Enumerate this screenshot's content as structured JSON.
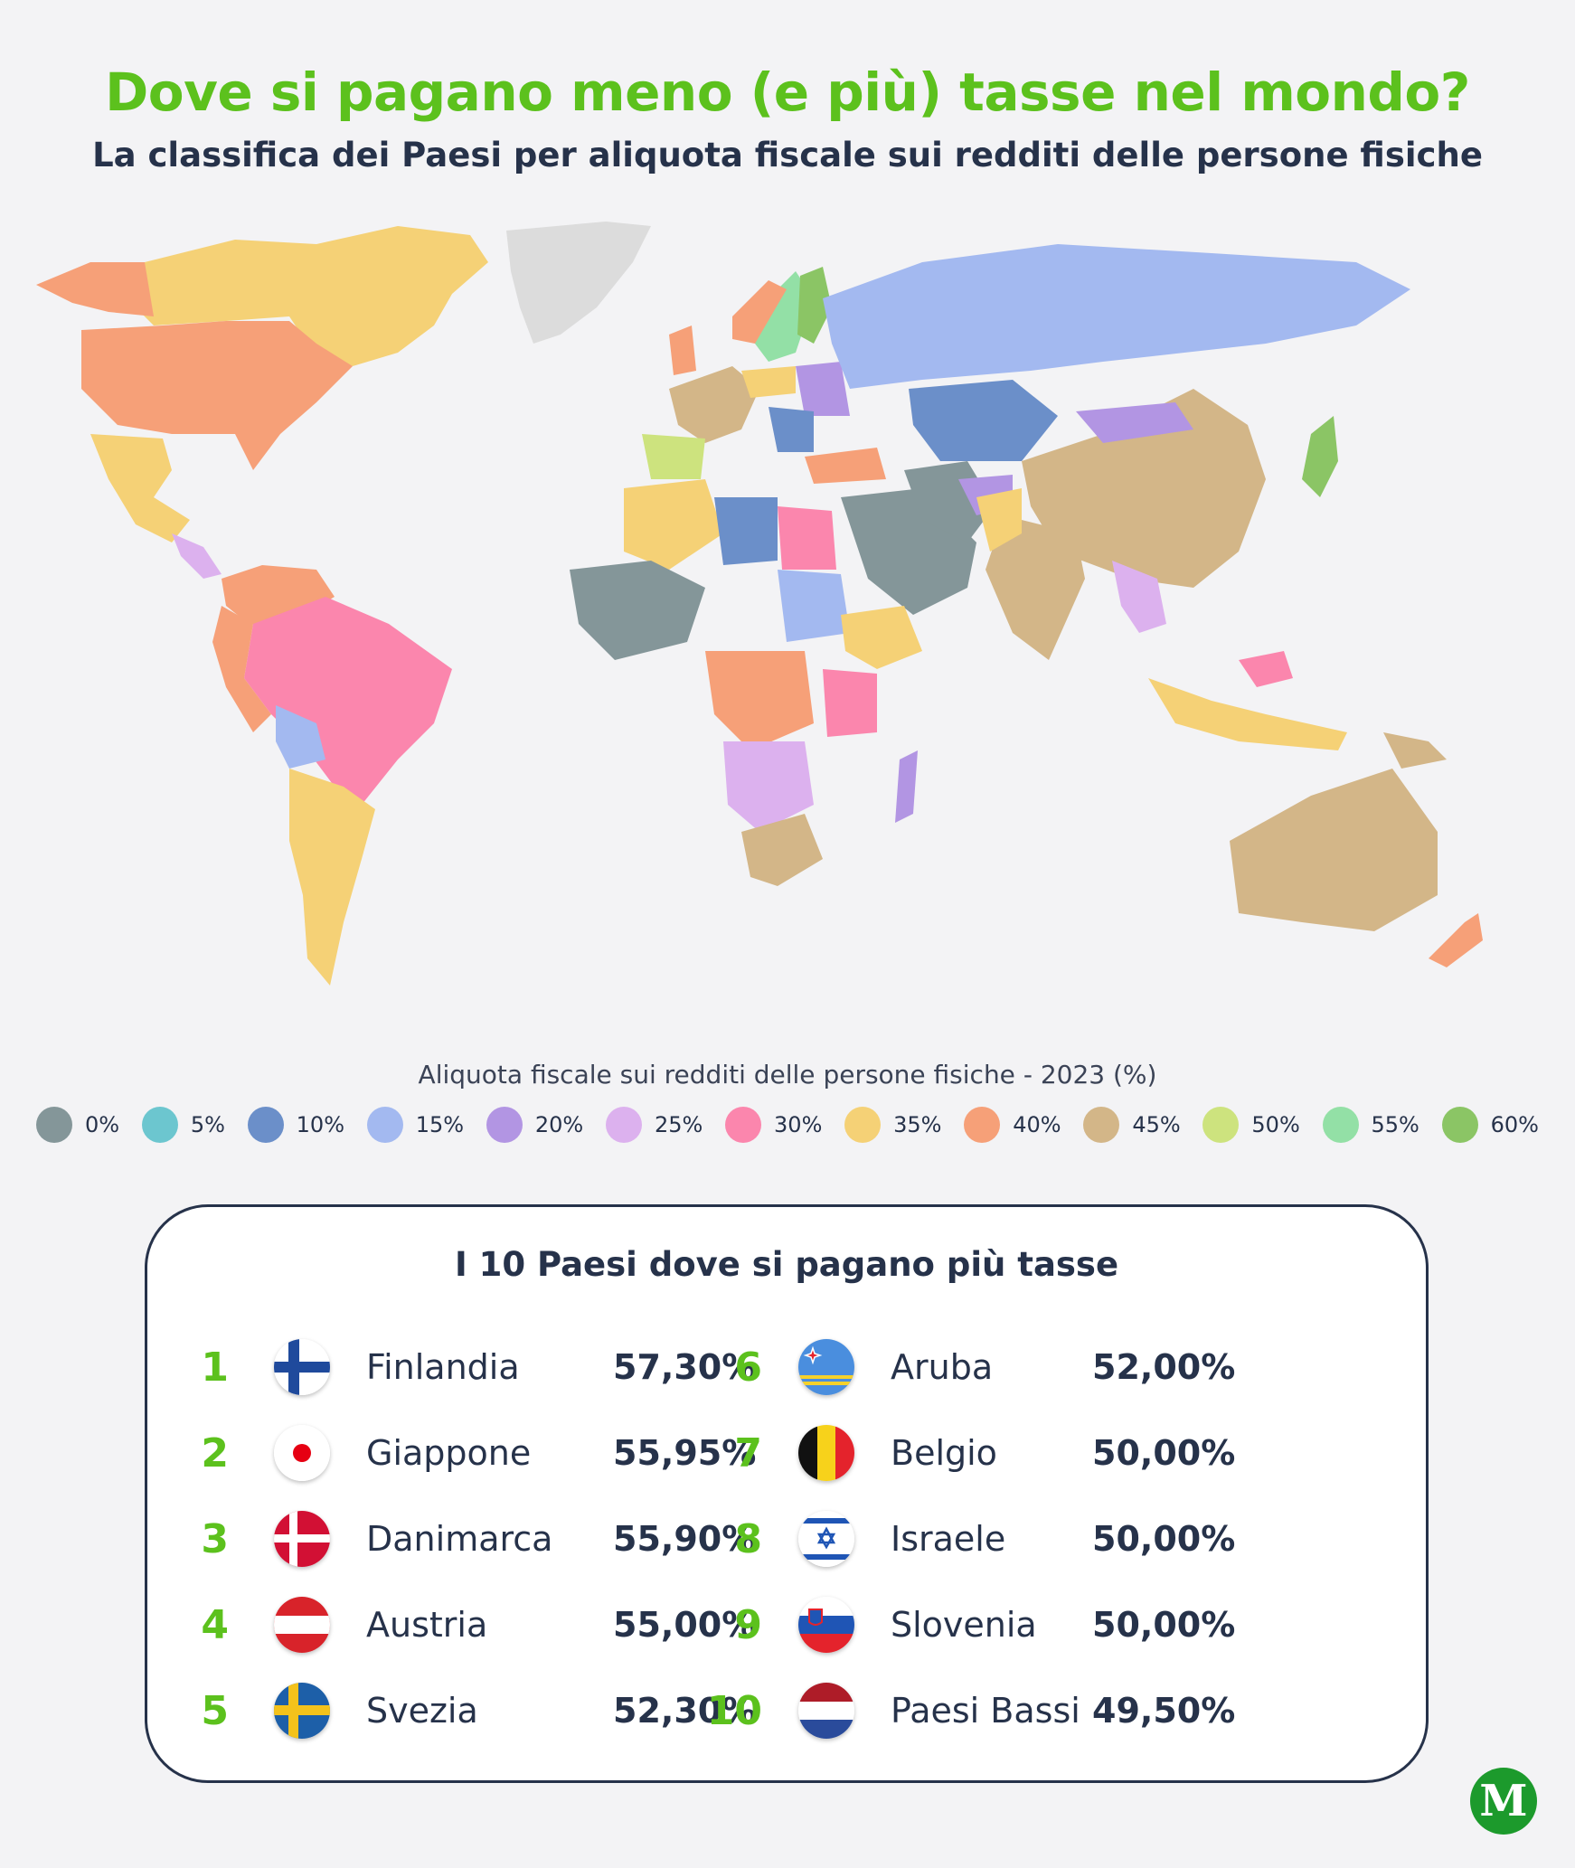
{
  "header": {
    "title": "Dove si pagano meno (e più) tasse nel mondo?",
    "subtitle": "La classifica dei Paesi per aliquota fiscale sui redditi delle persone fisiche"
  },
  "legend": {
    "title": "Aliquota fiscale sui redditi delle persone fisiche - 2023 (%)",
    "items": [
      {
        "label": "0%",
        "color": "#849699"
      },
      {
        "label": "5%",
        "color": "#6cc6cf"
      },
      {
        "label": "10%",
        "color": "#6b8fc9"
      },
      {
        "label": "15%",
        "color": "#a3b9f0"
      },
      {
        "label": "20%",
        "color": "#b295e3"
      },
      {
        "label": "25%",
        "color": "#dcb1ee"
      },
      {
        "label": "30%",
        "color": "#fb86ad"
      },
      {
        "label": "35%",
        "color": "#f5d176"
      },
      {
        "label": "40%",
        "color": "#f6a078"
      },
      {
        "label": "45%",
        "color": "#d3b688"
      },
      {
        "label": "50%",
        "color": "#cde37e"
      },
      {
        "label": "55%",
        "color": "#93e0a6"
      },
      {
        "label": "60%",
        "color": "#8bc565"
      }
    ]
  },
  "ranking": {
    "title": "I 10 Paesi dove si pagano più tasse",
    "items": [
      {
        "rank": "1",
        "country": "Finlandia",
        "value": "57,30%",
        "flag": "finland-flag-icon"
      },
      {
        "rank": "2",
        "country": "Giappone",
        "value": "55,95%",
        "flag": "japan-flag-icon"
      },
      {
        "rank": "3",
        "country": "Danimarca",
        "value": "55,90%",
        "flag": "denmark-flag-icon"
      },
      {
        "rank": "4",
        "country": "Austria",
        "value": "55,00%",
        "flag": "austria-flag-icon"
      },
      {
        "rank": "5",
        "country": "Svezia",
        "value": "52,30%",
        "flag": "sweden-flag-icon"
      },
      {
        "rank": "6",
        "country": "Aruba",
        "value": "52,00%",
        "flag": "aruba-flag-icon"
      },
      {
        "rank": "7",
        "country": "Belgio",
        "value": "50,00%",
        "flag": "belgium-flag-icon"
      },
      {
        "rank": "8",
        "country": "Israele",
        "value": "50,00%",
        "flag": "israel-flag-icon"
      },
      {
        "rank": "9",
        "country": "Slovenia",
        "value": "50,00%",
        "flag": "slovenia-flag-icon"
      },
      {
        "rank": "10",
        "country": "Paesi Bassi",
        "value": "49,50%",
        "flag": "netherlands-flag-icon"
      }
    ]
  },
  "logo": {
    "text": "M"
  }
}
